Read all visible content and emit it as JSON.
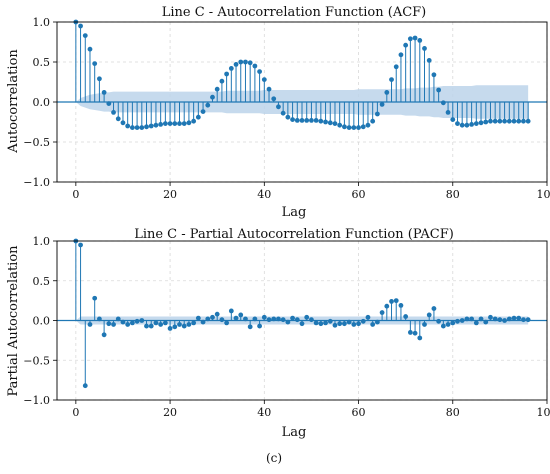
{
  "caption": "(c)",
  "chart_data": [
    {
      "type": "line",
      "title": "Line C - Autocorrelation Function (ACF)",
      "xlabel": "Lag",
      "ylabel": "Autocorrelation",
      "xlim": [
        -4,
        100
      ],
      "ylim": [
        -1.0,
        1.0
      ],
      "xticks": [
        "0",
        "20",
        "40",
        "60",
        "80",
        "100"
      ],
      "yticks": [
        "−1.0",
        "−0.5",
        "0.0",
        "0.5",
        "1.0"
      ],
      "grid": true,
      "legend": "none",
      "colors": {
        "stem": "#1f77b4",
        "band": "#bcd4ea",
        "axis": "#000000",
        "grid": "#d9d9d9"
      },
      "lags": [
        0,
        1,
        2,
        3,
        4,
        5,
        6,
        7,
        8,
        9,
        10,
        11,
        12,
        13,
        14,
        15,
        16,
        17,
        18,
        19,
        20,
        21,
        22,
        23,
        24,
        25,
        26,
        27,
        28,
        29,
        30,
        31,
        32,
        33,
        34,
        35,
        36,
        37,
        38,
        39,
        40,
        41,
        42,
        43,
        44,
        45,
        46,
        47,
        48,
        49,
        50,
        51,
        52,
        53,
        54,
        55,
        56,
        57,
        58,
        59,
        60,
        61,
        62,
        63,
        64,
        65,
        66,
        67,
        68,
        69,
        70,
        71,
        72,
        73,
        74,
        75,
        76,
        77,
        78,
        79,
        80,
        81,
        82,
        83,
        84,
        85,
        86,
        87,
        88,
        89,
        90,
        91,
        92,
        93,
        94,
        95,
        96
      ],
      "values": [
        1.0,
        0.95,
        0.83,
        0.66,
        0.48,
        0.29,
        0.12,
        -0.02,
        -0.13,
        -0.21,
        -0.26,
        -0.3,
        -0.32,
        -0.32,
        -0.32,
        -0.31,
        -0.3,
        -0.29,
        -0.28,
        -0.27,
        -0.27,
        -0.27,
        -0.27,
        -0.27,
        -0.26,
        -0.24,
        -0.19,
        -0.12,
        -0.04,
        0.06,
        0.16,
        0.26,
        0.35,
        0.42,
        0.47,
        0.5,
        0.5,
        0.49,
        0.45,
        0.38,
        0.28,
        0.16,
        0.04,
        -0.06,
        -0.14,
        -0.19,
        -0.22,
        -0.23,
        -0.23,
        -0.23,
        -0.23,
        -0.23,
        -0.24,
        -0.25,
        -0.26,
        -0.27,
        -0.29,
        -0.31,
        -0.32,
        -0.32,
        -0.32,
        -0.31,
        -0.29,
        -0.24,
        -0.15,
        -0.03,
        0.12,
        0.28,
        0.44,
        0.59,
        0.71,
        0.79,
        0.8,
        0.77,
        0.67,
        0.52,
        0.34,
        0.15,
        -0.01,
        -0.13,
        -0.22,
        -0.27,
        -0.29,
        -0.29,
        -0.28,
        -0.27,
        -0.26,
        -0.25,
        -0.24,
        -0.24,
        -0.24,
        -0.24,
        -0.24,
        -0.24,
        -0.24,
        -0.24,
        -0.24
      ],
      "confidence_band": [
        0.0,
        0.05,
        0.07,
        0.09,
        0.1,
        0.11,
        0.12,
        0.12,
        0.13,
        0.13,
        0.13,
        0.13,
        0.13,
        0.13,
        0.13,
        0.13,
        0.13,
        0.13,
        0.13,
        0.13,
        0.13,
        0.13,
        0.13,
        0.13,
        0.13,
        0.13,
        0.13,
        0.13,
        0.13,
        0.13,
        0.13,
        0.13,
        0.14,
        0.14,
        0.14,
        0.14,
        0.14,
        0.14,
        0.14,
        0.14,
        0.15,
        0.15,
        0.15,
        0.15,
        0.15,
        0.15,
        0.15,
        0.15,
        0.15,
        0.15,
        0.15,
        0.15,
        0.15,
        0.15,
        0.15,
        0.15,
        0.15,
        0.15,
        0.15,
        0.15,
        0.16,
        0.16,
        0.16,
        0.16,
        0.16,
        0.16,
        0.16,
        0.16,
        0.16,
        0.16,
        0.17,
        0.17,
        0.17,
        0.18,
        0.18,
        0.18,
        0.19,
        0.19,
        0.2,
        0.2,
        0.2,
        0.2,
        0.2,
        0.2,
        0.2,
        0.21,
        0.21,
        0.21,
        0.21,
        0.21,
        0.21,
        0.21,
        0.21,
        0.21,
        0.21,
        0.21,
        0.21
      ]
    },
    {
      "type": "line",
      "title": "Line C - Partial Autocorrelation Function (PACF)",
      "xlabel": "Lag",
      "ylabel": "Partial Autocorrelation",
      "xlim": [
        -4,
        100
      ],
      "ylim": [
        -1.0,
        1.0
      ],
      "xticks": [
        "0",
        "20",
        "40",
        "60",
        "80",
        "100"
      ],
      "yticks": [
        "−1.0",
        "−0.5",
        "0.0",
        "0.5",
        "1.0"
      ],
      "grid": true,
      "legend": "none",
      "colors": {
        "stem": "#1f77b4",
        "band": "#bcd4ea",
        "axis": "#000000",
        "grid": "#d9d9d9"
      },
      "lags": [
        0,
        1,
        2,
        3,
        4,
        5,
        6,
        7,
        8,
        9,
        10,
        11,
        12,
        13,
        14,
        15,
        16,
        17,
        18,
        19,
        20,
        21,
        22,
        23,
        24,
        25,
        26,
        27,
        28,
        29,
        30,
        31,
        32,
        33,
        34,
        35,
        36,
        37,
        38,
        39,
        40,
        41,
        42,
        43,
        44,
        45,
        46,
        47,
        48,
        49,
        50,
        51,
        52,
        53,
        54,
        55,
        56,
        57,
        58,
        59,
        60,
        61,
        62,
        63,
        64,
        65,
        66,
        67,
        68,
        69,
        70,
        71,
        72,
        73,
        74,
        75,
        76,
        77,
        78,
        79,
        80,
        81,
        82,
        83,
        84,
        85,
        86,
        87,
        88,
        89,
        90,
        91,
        92,
        93,
        94,
        95,
        96
      ],
      "values": [
        1.0,
        0.95,
        -0.82,
        -0.05,
        0.28,
        0.02,
        -0.18,
        -0.04,
        -0.05,
        0.02,
        -0.02,
        -0.05,
        -0.03,
        -0.01,
        0.0,
        -0.07,
        -0.07,
        -0.03,
        -0.05,
        -0.03,
        -0.1,
        -0.08,
        -0.05,
        -0.07,
        -0.05,
        -0.03,
        0.03,
        -0.02,
        0.02,
        0.04,
        0.08,
        0.01,
        -0.03,
        0.12,
        0.03,
        0.07,
        0.02,
        -0.08,
        0.02,
        -0.07,
        0.04,
        0.01,
        0.02,
        0.02,
        0.01,
        -0.02,
        0.03,
        0.01,
        -0.04,
        0.04,
        0.01,
        -0.03,
        -0.04,
        -0.03,
        -0.01,
        -0.06,
        -0.04,
        -0.04,
        -0.02,
        -0.05,
        -0.04,
        -0.01,
        0.04,
        -0.05,
        -0.02,
        0.1,
        0.18,
        0.24,
        0.25,
        0.19,
        0.05,
        -0.15,
        -0.16,
        -0.22,
        -0.05,
        0.07,
        0.15,
        -0.01,
        -0.07,
        -0.05,
        -0.03,
        -0.01,
        0.0,
        0.02,
        0.02,
        -0.03,
        0.02,
        -0.02,
        0.04,
        0.02,
        0.01,
        0.0,
        0.02,
        0.03,
        0.03,
        0.01,
        0.01
      ],
      "confidence_band": [
        0.0,
        0.05,
        0.05,
        0.05,
        0.05,
        0.05,
        0.05,
        0.05,
        0.05,
        0.05,
        0.05,
        0.05,
        0.05,
        0.05,
        0.05,
        0.05,
        0.05,
        0.05,
        0.05,
        0.05,
        0.05,
        0.05,
        0.05,
        0.05,
        0.05,
        0.05,
        0.05,
        0.05,
        0.05,
        0.05,
        0.05,
        0.05,
        0.05,
        0.05,
        0.05,
        0.05,
        0.05,
        0.05,
        0.05,
        0.05,
        0.05,
        0.05,
        0.05,
        0.05,
        0.05,
        0.05,
        0.05,
        0.05,
        0.05,
        0.05,
        0.05,
        0.05,
        0.05,
        0.05,
        0.05,
        0.05,
        0.05,
        0.05,
        0.05,
        0.05,
        0.05,
        0.05,
        0.05,
        0.05,
        0.05,
        0.05,
        0.05,
        0.05,
        0.05,
        0.05,
        0.05,
        0.05,
        0.05,
        0.05,
        0.05,
        0.05,
        0.05,
        0.05,
        0.05,
        0.05,
        0.05,
        0.05,
        0.05,
        0.05,
        0.05,
        0.05,
        0.05,
        0.05,
        0.05,
        0.05,
        0.05,
        0.05,
        0.05,
        0.05,
        0.05,
        0.05,
        0.05
      ]
    }
  ]
}
